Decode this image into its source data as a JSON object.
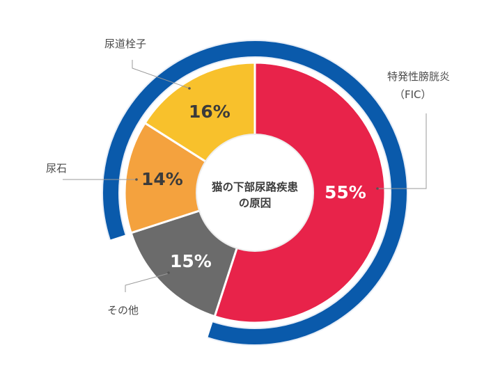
{
  "chart_data": {
    "type": "pie",
    "subtype": "donut",
    "title": "猫の下部尿路疾患の原因",
    "categories": [
      "特発性膀胱炎（FIC）",
      "その他",
      "尿石",
      "尿道栓子"
    ],
    "values": [
      55,
      15,
      14,
      16
    ],
    "value_labels": [
      "55%",
      "15%",
      "14%",
      "16%"
    ],
    "colors": [
      "#e8234a",
      "#6b6b6b",
      "#f4a23e",
      "#f8c12c"
    ],
    "label_colors": [
      "#ffffff",
      "#ffffff",
      "#3b3b3b",
      "#3b3b3b"
    ],
    "outer_ring": {
      "color": "#0a5aab",
      "covers": [
        "特発性膀胱炎（FIC）",
        "尿石",
        "尿道栓子"
      ]
    },
    "legend_position": "callout-labels"
  },
  "center": {
    "line1": "猫の下部尿路疾患",
    "line2": "の原因"
  },
  "labels": {
    "fic_line1": "特発性膀胱炎",
    "fic_line2": "（FIC）",
    "other": "その他",
    "stone": "尿石",
    "plug": "尿道栓子"
  },
  "percent": {
    "fic": "55%",
    "other": "15%",
    "stone": "14%",
    "plug": "16%"
  }
}
